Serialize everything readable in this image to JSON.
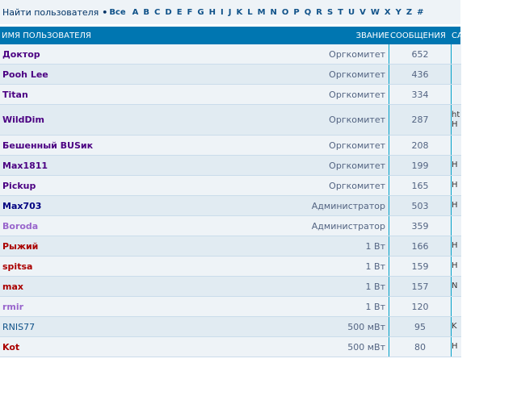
{
  "filter": {
    "label": "Найти пользователя",
    "bullet": "•",
    "all": "Все",
    "letters": [
      "A",
      "B",
      "C",
      "D",
      "E",
      "F",
      "G",
      "H",
      "I",
      "J",
      "K",
      "L",
      "M",
      "N",
      "O",
      "P",
      "Q",
      "R",
      "S",
      "T",
      "U",
      "V",
      "W",
      "X",
      "Y",
      "Z",
      "#"
    ]
  },
  "header": {
    "name": "Имя пользователя",
    "rank": "Звание",
    "posts": "Сообщения",
    "site": "Са"
  },
  "colors": {
    "header_bg": "#0076b1",
    "row_odd": "#eef3f7",
    "row_even": "#e1ebf2",
    "divider": "#00a0c8"
  },
  "users": [
    {
      "name": "Доктор",
      "color": "#4b0082",
      "rank": "Оргкомитет",
      "posts": "652",
      "site": ""
    },
    {
      "name": "Pooh Lee",
      "color": "#4b0082",
      "rank": "Оргкомитет",
      "posts": "436",
      "site": ""
    },
    {
      "name": "Titan",
      "color": "#4b0082",
      "rank": "Оргкомитет",
      "posts": "334",
      "site": ""
    },
    {
      "name": "WildDim",
      "color": "#4b0082",
      "rank": "Оргкомитет",
      "posts": "287",
      "site": "ht\nH",
      "tall": true
    },
    {
      "name": "Бешенный BUSик",
      "color": "#4b0082",
      "rank": "Оргкомитет",
      "posts": "208",
      "site": ""
    },
    {
      "name": "Max1811",
      "color": "#4b0082",
      "rank": "Оргкомитет",
      "posts": "199",
      "site": "H"
    },
    {
      "name": "Pickup",
      "color": "#4b0082",
      "rank": "Оргкомитет",
      "posts": "165",
      "site": "H"
    },
    {
      "name": "Max703",
      "color": "#000080",
      "rank": "Администратор",
      "posts": "503",
      "site": "H"
    },
    {
      "name": "Boroda",
      "color": "#9966cc",
      "rank": "Администратор",
      "posts": "359",
      "site": ""
    },
    {
      "name": "Рыжий",
      "color": "#aa0000",
      "rank": "1 Вт",
      "posts": "166",
      "site": "H"
    },
    {
      "name": "spitsa",
      "color": "#aa0000",
      "rank": "1 Вт",
      "posts": "159",
      "site": "H"
    },
    {
      "name": "max",
      "color": "#aa0000",
      "rank": "1 Вт",
      "posts": "157",
      "site": "N"
    },
    {
      "name": "rmir",
      "color": "#9966cc",
      "rank": "1 Вт",
      "posts": "120",
      "site": ""
    },
    {
      "name": "RNIS77",
      "color": "#105289",
      "rank": "500 мВт",
      "posts": "95",
      "site": "K",
      "normal": true
    },
    {
      "name": "Kot",
      "color": "#aa0000",
      "rank": "500 мВт",
      "posts": "80",
      "site": "H"
    }
  ]
}
